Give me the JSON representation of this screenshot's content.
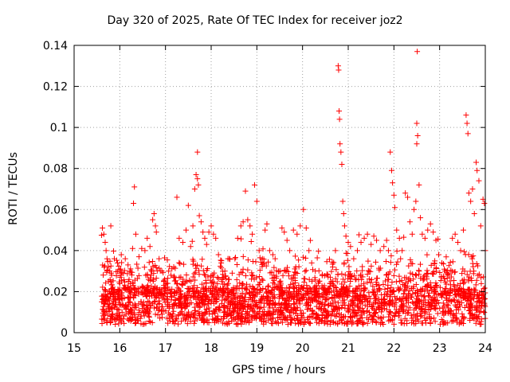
{
  "chart_data": {
    "type": "scatter",
    "title": "Day 320 of 2025, Rate Of TEC Index for receiver joz2",
    "xlabel": "GPS time / hours",
    "ylabel": "ROTI / TECUs",
    "xlim": [
      15,
      24
    ],
    "ylim": [
      0,
      0.14
    ],
    "xticks": [
      15,
      16,
      17,
      18,
      19,
      20,
      21,
      22,
      23,
      24
    ],
    "yticks": [
      0,
      0.02,
      0.04,
      0.06,
      0.08,
      0.1,
      0.12,
      0.14
    ],
    "ytick_labels": [
      "0",
      "0.02",
      "0.04",
      "0.06",
      "0.08",
      "0.1",
      "0.12",
      "0.14"
    ],
    "grid": true,
    "marker": "+",
    "color": "#ff0000",
    "series": [
      {
        "name": "ROTI",
        "points": [
          [
            15.62,
            0.051
          ],
          [
            15.65,
            0.048
          ],
          [
            15.68,
            0.044
          ],
          [
            15.7,
            0.04
          ],
          [
            15.72,
            0.036
          ],
          [
            15.75,
            0.032
          ],
          [
            15.78,
            0.03
          ],
          [
            15.82,
            0.028
          ],
          [
            15.88,
            0.036
          ],
          [
            15.95,
            0.034
          ],
          [
            16.02,
            0.031
          ],
          [
            16.08,
            0.029
          ],
          [
            16.12,
            0.036
          ],
          [
            16.18,
            0.033
          ],
          [
            16.22,
            0.03
          ],
          [
            16.28,
            0.041
          ],
          [
            16.32,
            0.071
          ],
          [
            16.3,
            0.063
          ],
          [
            16.35,
            0.048
          ],
          [
            16.42,
            0.037
          ],
          [
            16.48,
            0.041
          ],
          [
            16.55,
            0.04
          ],
          [
            16.6,
            0.046
          ],
          [
            16.66,
            0.042
          ],
          [
            16.72,
            0.055
          ],
          [
            16.75,
            0.058
          ],
          [
            16.78,
            0.052
          ],
          [
            16.8,
            0.049
          ],
          [
            16.86,
            0.036
          ],
          [
            16.92,
            0.03
          ],
          [
            16.98,
            0.026
          ],
          [
            17.05,
            0.024
          ],
          [
            17.12,
            0.028
          ],
          [
            17.18,
            0.032
          ],
          [
            17.25,
            0.066
          ],
          [
            17.3,
            0.046
          ],
          [
            17.38,
            0.044
          ],
          [
            17.45,
            0.05
          ],
          [
            17.5,
            0.062
          ],
          [
            17.55,
            0.042
          ],
          [
            17.6,
            0.052
          ],
          [
            17.64,
            0.07
          ],
          [
            17.67,
            0.077
          ],
          [
            17.7,
            0.075
          ],
          [
            17.72,
            0.072
          ],
          [
            17.7,
            0.088
          ],
          [
            17.74,
            0.057
          ],
          [
            17.78,
            0.054
          ],
          [
            17.82,
            0.049
          ],
          [
            17.86,
            0.046
          ],
          [
            17.9,
            0.043
          ],
          [
            17.95,
            0.049
          ],
          [
            18.0,
            0.052
          ],
          [
            18.05,
            0.048
          ],
          [
            18.1,
            0.046
          ],
          [
            18.16,
            0.038
          ],
          [
            18.22,
            0.034
          ],
          [
            18.3,
            0.03
          ],
          [
            18.38,
            0.026
          ],
          [
            18.46,
            0.029
          ],
          [
            18.52,
            0.036
          ],
          [
            18.58,
            0.046
          ],
          [
            18.65,
            0.052
          ],
          [
            18.7,
            0.054
          ],
          [
            18.75,
            0.069
          ],
          [
            18.8,
            0.055
          ],
          [
            18.85,
            0.052
          ],
          [
            18.9,
            0.048
          ],
          [
            18.95,
            0.072
          ],
          [
            19.0,
            0.064
          ],
          [
            19.05,
            0.04
          ],
          [
            19.12,
            0.036
          ],
          [
            19.18,
            0.05
          ],
          [
            19.22,
            0.053
          ],
          [
            19.28,
            0.04
          ],
          [
            19.35,
            0.038
          ],
          [
            19.4,
            0.036
          ],
          [
            19.48,
            0.03
          ],
          [
            19.55,
            0.051
          ],
          [
            19.6,
            0.049
          ],
          [
            19.66,
            0.045
          ],
          [
            19.72,
            0.04
          ],
          [
            19.8,
            0.05
          ],
          [
            19.88,
            0.048
          ],
          [
            19.95,
            0.052
          ],
          [
            20.02,
            0.06
          ],
          [
            20.08,
            0.051
          ],
          [
            20.14,
            0.04
          ],
          [
            20.2,
            0.034
          ],
          [
            20.28,
            0.03
          ],
          [
            20.36,
            0.025
          ],
          [
            20.45,
            0.022
          ],
          [
            20.52,
            0.02
          ],
          [
            20.6,
            0.024
          ],
          [
            20.66,
            0.032
          ],
          [
            20.72,
            0.04
          ],
          [
            20.78,
            0.13
          ],
          [
            20.79,
            0.128
          ],
          [
            20.8,
            0.108
          ],
          [
            20.81,
            0.104
          ],
          [
            20.82,
            0.092
          ],
          [
            20.84,
            0.088
          ],
          [
            20.86,
            0.082
          ],
          [
            20.88,
            0.064
          ],
          [
            20.9,
            0.058
          ],
          [
            20.92,
            0.052
          ],
          [
            20.95,
            0.047
          ],
          [
            21.0,
            0.044
          ],
          [
            21.05,
            0.042
          ],
          [
            21.12,
            0.036
          ],
          [
            21.2,
            0.04
          ],
          [
            21.28,
            0.044
          ],
          [
            21.35,
            0.046
          ],
          [
            21.42,
            0.048
          ],
          [
            21.5,
            0.043
          ],
          [
            21.56,
            0.047
          ],
          [
            21.62,
            0.045
          ],
          [
            21.7,
            0.04
          ],
          [
            21.78,
            0.042
          ],
          [
            21.84,
            0.045
          ],
          [
            21.88,
            0.04
          ],
          [
            21.92,
            0.088
          ],
          [
            21.95,
            0.079
          ],
          [
            21.97,
            0.073
          ],
          [
            22.0,
            0.067
          ],
          [
            22.02,
            0.061
          ],
          [
            22.06,
            0.05
          ],
          [
            22.12,
            0.046
          ],
          [
            22.18,
            0.04
          ],
          [
            22.25,
            0.068
          ],
          [
            22.3,
            0.066
          ],
          [
            22.35,
            0.054
          ],
          [
            22.4,
            0.048
          ],
          [
            22.44,
            0.06
          ],
          [
            22.48,
            0.064
          ],
          [
            22.5,
            0.102
          ],
          [
            22.51,
            0.137
          ],
          [
            22.5,
            0.092
          ],
          [
            22.52,
            0.096
          ],
          [
            22.55,
            0.072
          ],
          [
            22.58,
            0.056
          ],
          [
            22.62,
            0.048
          ],
          [
            22.68,
            0.046
          ],
          [
            22.74,
            0.05
          ],
          [
            22.8,
            0.053
          ],
          [
            22.86,
            0.049
          ],
          [
            22.92,
            0.045
          ],
          [
            22.98,
            0.038
          ],
          [
            23.05,
            0.034
          ],
          [
            23.12,
            0.03
          ],
          [
            23.2,
            0.028
          ],
          [
            23.28,
            0.046
          ],
          [
            23.34,
            0.048
          ],
          [
            23.4,
            0.044
          ],
          [
            23.46,
            0.04
          ],
          [
            23.52,
            0.05
          ],
          [
            23.58,
            0.106
          ],
          [
            23.6,
            0.102
          ],
          [
            23.62,
            0.097
          ],
          [
            23.64,
            0.068
          ],
          [
            23.68,
            0.064
          ],
          [
            23.72,
            0.07
          ],
          [
            23.76,
            0.058
          ],
          [
            23.8,
            0.083
          ],
          [
            23.82,
            0.079
          ],
          [
            23.86,
            0.074
          ],
          [
            23.9,
            0.052
          ],
          [
            23.95,
            0.065
          ],
          [
            23.98,
            0.063
          ],
          [
            24.0,
            0.04
          ]
        ]
      }
    ]
  }
}
